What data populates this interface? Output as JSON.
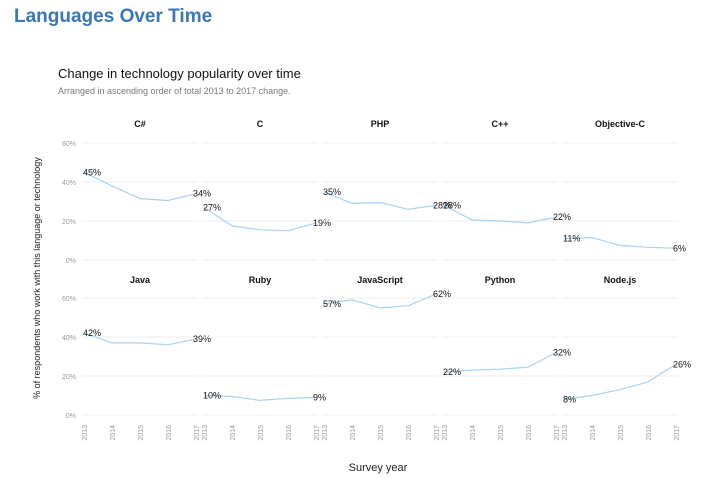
{
  "page": {
    "title": "Languages Over Time"
  },
  "chart_data": {
    "type": "line",
    "title": "Change in technology popularity over time",
    "subtitle": "Arranged in ascending order of total 2013 to 2017 change.",
    "xlabel": "Survey year",
    "ylabel": "% of respondents who work with this language or technology",
    "x": [
      "2013",
      "2014",
      "2015",
      "2016",
      "2017"
    ],
    "ylim": [
      0,
      60
    ],
    "yticks": [
      "0%",
      "20%",
      "40%",
      "60%"
    ],
    "grid": true,
    "line_color": "#a9d3f2",
    "panels": [
      {
        "name": "C#",
        "values": [
          45,
          38,
          31.5,
          30.5,
          34
        ],
        "start_label": "45%",
        "end_label": "34%"
      },
      {
        "name": "C",
        "values": [
          27,
          17.5,
          15.5,
          15,
          19
        ],
        "start_label": "27%",
        "end_label": "19%"
      },
      {
        "name": "PHP",
        "values": [
          35,
          29,
          29.5,
          26,
          28
        ],
        "start_label": "35%",
        "end_label": "28%"
      },
      {
        "name": "C++",
        "values": [
          28,
          20.5,
          20,
          19,
          22
        ],
        "start_label": "28%",
        "end_label": "22%"
      },
      {
        "name": "Objective-C",
        "values": [
          11,
          11.5,
          7.5,
          6.5,
          6
        ],
        "start_label": "11%",
        "end_label": "6%"
      },
      {
        "name": "Java",
        "values": [
          42,
          37,
          37,
          36,
          39
        ],
        "start_label": "42%",
        "end_label": "39%"
      },
      {
        "name": "Ruby",
        "values": [
          10,
          9.5,
          7.5,
          8.5,
          9
        ],
        "start_label": "10%",
        "end_label": "9%"
      },
      {
        "name": "JavaScript",
        "values": [
          57,
          59,
          55,
          56,
          62
        ],
        "start_label": "57%",
        "end_label": "62%"
      },
      {
        "name": "Python",
        "values": [
          22,
          23,
          23.5,
          24.5,
          32
        ],
        "start_label": "22%",
        "end_label": "32%"
      },
      {
        "name": "Node.js",
        "values": [
          8,
          10,
          13,
          17,
          26
        ],
        "start_label": "8%",
        "end_label": "26%"
      }
    ]
  }
}
